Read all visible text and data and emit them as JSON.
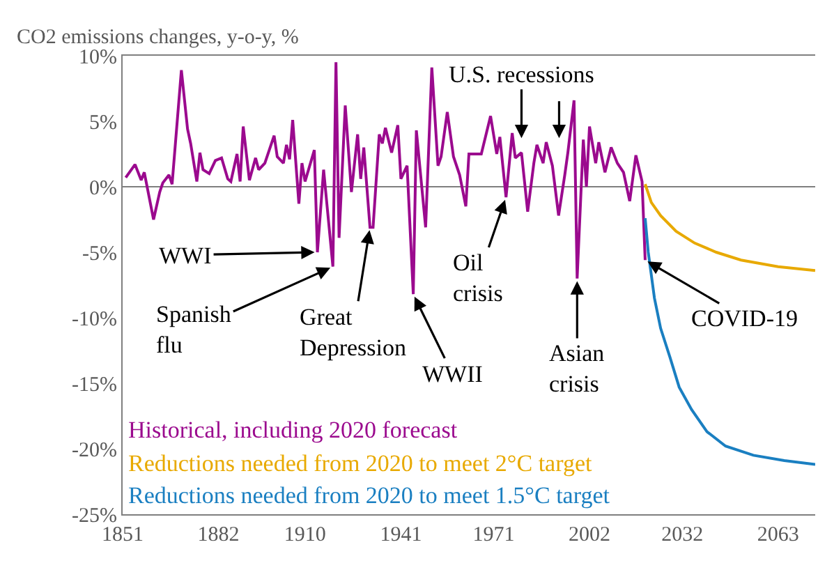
{
  "chart_data": {
    "type": "line",
    "ylabel": "CO2 emissions changes, y-o-y, %",
    "xlim": [
      1851,
      2075
    ],
    "xticks": [
      1851,
      1882,
      1910,
      1941,
      1971,
      2002,
      2032,
      2063
    ],
    "ylim": [
      -25,
      10
    ],
    "yticks": [
      {
        "value": -25,
        "label": "-25%"
      },
      {
        "value": -20,
        "label": "-20%"
      },
      {
        "value": -15,
        "label": "-15%"
      },
      {
        "value": -10,
        "label": "-10%"
      },
      {
        "value": -5,
        "label": "-5%"
      },
      {
        "value": 0,
        "label": "0%"
      },
      {
        "value": 5,
        "label": "5%"
      },
      {
        "value": 10,
        "label": "10%"
      }
    ],
    "grid": false,
    "legend": false,
    "marker": "none",
    "line_style": "solid",
    "ref_lines": [
      {
        "axis": "y",
        "value": 0,
        "color": "#7f7f7f"
      }
    ],
    "series": [
      {
        "name": "Historical, including 2020 forecast",
        "color": "#9b0a8e",
        "x": [
          1852,
          1855,
          1857,
          1858,
          1861,
          1863,
          1864,
          1866,
          1867,
          1870,
          1872,
          1873,
          1875,
          1876,
          1877,
          1879,
          1881,
          1883,
          1885,
          1886,
          1888,
          1889,
          1890,
          1892,
          1894,
          1895,
          1897,
          1900,
          1901,
          1903,
          1904,
          1905,
          1906,
          1908,
          1909,
          1910,
          1913,
          1914,
          1916,
          1919,
          1920,
          1921,
          1923,
          1925,
          1927,
          1928,
          1929,
          1931,
          1932,
          1934,
          1935,
          1936,
          1938,
          1940,
          1941,
          1943,
          1945,
          1946,
          1949,
          1951,
          1953,
          1954,
          1956,
          1958,
          1960,
          1962,
          1963,
          1967,
          1970,
          1972,
          1973,
          1975,
          1977,
          1978,
          1980,
          1982,
          1984,
          1985,
          1987,
          1988,
          1990,
          1992,
          1994,
          1995,
          1997,
          1998,
          2000,
          2001,
          2002,
          2004,
          2005,
          2007,
          2009,
          2011,
          2013,
          2015,
          2017,
          2019,
          2020
        ],
        "values": [
          0.7,
          1.7,
          0.5,
          1.1,
          -2.5,
          -0.4,
          0.3,
          0.9,
          0.2,
          8.9,
          4.4,
          3.3,
          0.4,
          2.6,
          1.3,
          1.0,
          2.0,
          2.2,
          0.6,
          0.4,
          2.5,
          0.4,
          4.6,
          0.5,
          2.2,
          1.3,
          1.8,
          3.9,
          2.3,
          1.8,
          3.2,
          2.1,
          5.1,
          -1.3,
          1.8,
          0.4,
          2.8,
          -5.0,
          1.3,
          -6.1,
          9.5,
          -3.9,
          6.2,
          -0.4,
          4.0,
          0.6,
          3.0,
          -3.1,
          -3.1,
          4.0,
          3.3,
          4.5,
          2.6,
          4.7,
          0.6,
          1.6,
          -8.2,
          4.3,
          -3.1,
          9.1,
          1.6,
          2.3,
          5.7,
          2.3,
          0.9,
          -1.5,
          2.5,
          2.5,
          5.4,
          2.5,
          3.8,
          -0.8,
          4.1,
          2.2,
          2.6,
          -1.9,
          1.8,
          3.2,
          1.8,
          3.4,
          1.6,
          -2.2,
          0.9,
          2.6,
          6.6,
          -7.0,
          3.6,
          0.0,
          4.6,
          1.8,
          3.4,
          1.1,
          3.0,
          1.8,
          1.1,
          -1.1,
          2.4,
          0.4,
          -5.6
        ]
      },
      {
        "name": "Reductions needed from 2020 to meet 2°C target",
        "color": "#e8a900",
        "x": [
          2020,
          2022,
          2025,
          2030,
          2036,
          2043,
          2051,
          2063,
          2075
        ],
        "values": [
          0.2,
          -1.2,
          -2.2,
          -3.4,
          -4.3,
          -5.0,
          -5.6,
          -6.1,
          -6.4
        ]
      },
      {
        "name": "Reductions needed from 2020 to meet 1.5°C target",
        "color": "#1a7fc1",
        "x": [
          2020,
          2021,
          2023,
          2025,
          2028,
          2031,
          2035,
          2040,
          2046,
          2055,
          2065,
          2075
        ],
        "values": [
          -2.4,
          -5.0,
          -8.5,
          -10.8,
          -13.0,
          -15.3,
          -17.0,
          -18.7,
          -19.8,
          -20.5,
          -20.9,
          -21.2
        ]
      }
    ],
    "annotations": [
      {
        "text": "WWI",
        "x": 1914,
        "y": -5.0
      },
      {
        "text": "Spanish\nflu",
        "x": 1919,
        "y": -6.1
      },
      {
        "text": "Great\nDepression",
        "x": 1931,
        "y": -3.1
      },
      {
        "text": "WWII",
        "x": 1945,
        "y": -8.2
      },
      {
        "text": "Oil\ncrisis",
        "x": 1975,
        "y": -0.8
      },
      {
        "text": "Asian\ncrisis",
        "x": 1998,
        "y": -7.0
      },
      {
        "text": "U.S. recessions",
        "x": 1980,
        "y": 3.5
      },
      {
        "text": "COVID-19",
        "x": 2020,
        "y": -5.6
      }
    ]
  }
}
